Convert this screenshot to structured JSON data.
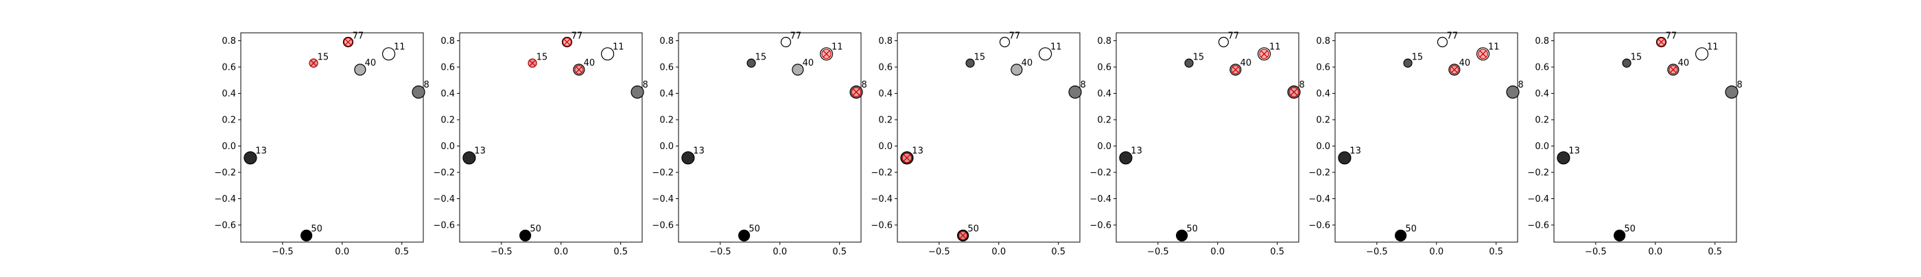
{
  "colors": {
    "highlight_fill": "#f4a6a6",
    "highlight_stroke": "#cc0000",
    "point_stroke": "#000000",
    "axis": "#000000"
  },
  "chart_data": [
    {
      "type": "scatter",
      "xlim": [
        -0.85,
        0.68
      ],
      "ylim": [
        -0.73,
        0.86
      ],
      "x_ticks": [
        -0.5,
        0.0,
        0.5
      ],
      "x_tick_labels": [
        "−0.5",
        "0.0",
        "0.5"
      ],
      "y_ticks": [
        -0.6,
        -0.4,
        -0.2,
        0.0,
        0.2,
        0.4,
        0.6,
        0.8
      ],
      "y_tick_labels": [
        "−0.6",
        "−0.4",
        "−0.2",
        "0.0",
        "0.2",
        "0.4",
        "0.6",
        "0.8"
      ],
      "grid": false,
      "points": [
        {
          "label": "77",
          "x": 0.05,
          "y": 0.79,
          "shade": "#ffffff",
          "size": 7,
          "highlighted": true
        },
        {
          "label": "11",
          "x": 0.39,
          "y": 0.7,
          "shade": "#ffffff",
          "size": 9,
          "highlighted": false
        },
        {
          "label": "15",
          "x": -0.24,
          "y": 0.63,
          "shade": "#555555",
          "size": 6,
          "highlighted": true
        },
        {
          "label": "40",
          "x": 0.15,
          "y": 0.58,
          "shade": "#b0b0b0",
          "size": 8,
          "highlighted": false
        },
        {
          "label": "8",
          "x": 0.64,
          "y": 0.41,
          "shade": "#777777",
          "size": 9,
          "highlighted": false
        },
        {
          "label": "13",
          "x": -0.77,
          "y": -0.09,
          "shade": "#2a2a2a",
          "size": 9,
          "highlighted": false
        },
        {
          "label": "50",
          "x": -0.3,
          "y": -0.68,
          "shade": "#000000",
          "size": 8,
          "highlighted": false
        }
      ]
    },
    {
      "type": "scatter",
      "xlim": [
        -0.85,
        0.68
      ],
      "ylim": [
        -0.73,
        0.86
      ],
      "x_ticks": [
        -0.5,
        0.0,
        0.5
      ],
      "x_tick_labels": [
        "−0.5",
        "0.0",
        "0.5"
      ],
      "y_ticks": [
        -0.6,
        -0.4,
        -0.2,
        0.0,
        0.2,
        0.4,
        0.6,
        0.8
      ],
      "y_tick_labels": [
        "−0.6",
        "−0.4",
        "−0.2",
        "0.0",
        "0.2",
        "0.4",
        "0.6",
        "0.8"
      ],
      "grid": false,
      "points": [
        {
          "label": "77",
          "x": 0.05,
          "y": 0.79,
          "shade": "#ffffff",
          "size": 7,
          "highlighted": true
        },
        {
          "label": "11",
          "x": 0.39,
          "y": 0.7,
          "shade": "#ffffff",
          "size": 9,
          "highlighted": false
        },
        {
          "label": "15",
          "x": -0.24,
          "y": 0.63,
          "shade": "#555555",
          "size": 6,
          "highlighted": true
        },
        {
          "label": "40",
          "x": 0.15,
          "y": 0.58,
          "shade": "#b0b0b0",
          "size": 8,
          "highlighted": true
        },
        {
          "label": "8",
          "x": 0.64,
          "y": 0.41,
          "shade": "#777777",
          "size": 9,
          "highlighted": false
        },
        {
          "label": "13",
          "x": -0.77,
          "y": -0.09,
          "shade": "#2a2a2a",
          "size": 9,
          "highlighted": false
        },
        {
          "label": "50",
          "x": -0.3,
          "y": -0.68,
          "shade": "#000000",
          "size": 8,
          "highlighted": false
        }
      ]
    },
    {
      "type": "scatter",
      "xlim": [
        -0.85,
        0.68
      ],
      "ylim": [
        -0.73,
        0.86
      ],
      "x_ticks": [
        -0.5,
        0.0,
        0.5
      ],
      "x_tick_labels": [
        "−0.5",
        "0.0",
        "0.5"
      ],
      "y_ticks": [
        -0.6,
        -0.4,
        -0.2,
        0.0,
        0.2,
        0.4,
        0.6,
        0.8
      ],
      "y_tick_labels": [
        "−0.6",
        "−0.4",
        "−0.2",
        "0.0",
        "0.2",
        "0.4",
        "0.6",
        "0.8"
      ],
      "grid": false,
      "points": [
        {
          "label": "77",
          "x": 0.05,
          "y": 0.79,
          "shade": "#ffffff",
          "size": 7,
          "highlighted": false
        },
        {
          "label": "11",
          "x": 0.39,
          "y": 0.7,
          "shade": "#ffffff",
          "size": 9,
          "highlighted": true
        },
        {
          "label": "15",
          "x": -0.24,
          "y": 0.63,
          "shade": "#555555",
          "size": 6,
          "highlighted": false
        },
        {
          "label": "40",
          "x": 0.15,
          "y": 0.58,
          "shade": "#b0b0b0",
          "size": 8,
          "highlighted": false
        },
        {
          "label": "8",
          "x": 0.64,
          "y": 0.41,
          "shade": "#777777",
          "size": 9,
          "highlighted": true
        },
        {
          "label": "13",
          "x": -0.77,
          "y": -0.09,
          "shade": "#2a2a2a",
          "size": 9,
          "highlighted": false
        },
        {
          "label": "50",
          "x": -0.3,
          "y": -0.68,
          "shade": "#000000",
          "size": 8,
          "highlighted": false
        }
      ]
    },
    {
      "type": "scatter",
      "xlim": [
        -0.85,
        0.68
      ],
      "ylim": [
        -0.73,
        0.86
      ],
      "x_ticks": [
        -0.5,
        0.0,
        0.5
      ],
      "x_tick_labels": [
        "−0.5",
        "0.0",
        "0.5"
      ],
      "y_ticks": [
        -0.6,
        -0.4,
        -0.2,
        0.0,
        0.2,
        0.4,
        0.6,
        0.8
      ],
      "y_tick_labels": [
        "−0.6",
        "−0.4",
        "−0.2",
        "0.0",
        "0.2",
        "0.4",
        "0.6",
        "0.8"
      ],
      "grid": false,
      "points": [
        {
          "label": "77",
          "x": 0.05,
          "y": 0.79,
          "shade": "#ffffff",
          "size": 7,
          "highlighted": false
        },
        {
          "label": "11",
          "x": 0.39,
          "y": 0.7,
          "shade": "#ffffff",
          "size": 9,
          "highlighted": false
        },
        {
          "label": "15",
          "x": -0.24,
          "y": 0.63,
          "shade": "#555555",
          "size": 6,
          "highlighted": false
        },
        {
          "label": "40",
          "x": 0.15,
          "y": 0.58,
          "shade": "#b0b0b0",
          "size": 8,
          "highlighted": false
        },
        {
          "label": "8",
          "x": 0.64,
          "y": 0.41,
          "shade": "#777777",
          "size": 9,
          "highlighted": false
        },
        {
          "label": "13",
          "x": -0.77,
          "y": -0.09,
          "shade": "#2a2a2a",
          "size": 9,
          "highlighted": true
        },
        {
          "label": "50",
          "x": -0.3,
          "y": -0.68,
          "shade": "#000000",
          "size": 8,
          "highlighted": true
        }
      ]
    },
    {
      "type": "scatter",
      "xlim": [
        -0.85,
        0.68
      ],
      "ylim": [
        -0.73,
        0.86
      ],
      "x_ticks": [
        -0.5,
        0.0,
        0.5
      ],
      "x_tick_labels": [
        "−0.5",
        "0.0",
        "0.5"
      ],
      "y_ticks": [
        -0.6,
        -0.4,
        -0.2,
        0.0,
        0.2,
        0.4,
        0.6,
        0.8
      ],
      "y_tick_labels": [
        "−0.6",
        "−0.4",
        "−0.2",
        "0.0",
        "0.2",
        "0.4",
        "0.6",
        "0.8"
      ],
      "grid": false,
      "points": [
        {
          "label": "77",
          "x": 0.05,
          "y": 0.79,
          "shade": "#ffffff",
          "size": 7,
          "highlighted": false
        },
        {
          "label": "11",
          "x": 0.39,
          "y": 0.7,
          "shade": "#ffffff",
          "size": 9,
          "highlighted": true
        },
        {
          "label": "15",
          "x": -0.24,
          "y": 0.63,
          "shade": "#555555",
          "size": 6,
          "highlighted": false
        },
        {
          "label": "40",
          "x": 0.15,
          "y": 0.58,
          "shade": "#b0b0b0",
          "size": 8,
          "highlighted": true
        },
        {
          "label": "8",
          "x": 0.64,
          "y": 0.41,
          "shade": "#777777",
          "size": 9,
          "highlighted": true
        },
        {
          "label": "13",
          "x": -0.77,
          "y": -0.09,
          "shade": "#2a2a2a",
          "size": 9,
          "highlighted": false
        },
        {
          "label": "50",
          "x": -0.3,
          "y": -0.68,
          "shade": "#000000",
          "size": 8,
          "highlighted": false
        }
      ]
    },
    {
      "type": "scatter",
      "xlim": [
        -0.85,
        0.68
      ],
      "ylim": [
        -0.73,
        0.86
      ],
      "x_ticks": [
        -0.5,
        0.0,
        0.5
      ],
      "x_tick_labels": [
        "−0.5",
        "0.0",
        "0.5"
      ],
      "y_ticks": [
        -0.6,
        -0.4,
        -0.2,
        0.0,
        0.2,
        0.4,
        0.6,
        0.8
      ],
      "y_tick_labels": [
        "−0.6",
        "−0.4",
        "−0.2",
        "0.0",
        "0.2",
        "0.4",
        "0.6",
        "0.8"
      ],
      "grid": false,
      "points": [
        {
          "label": "77",
          "x": 0.05,
          "y": 0.79,
          "shade": "#ffffff",
          "size": 7,
          "highlighted": false
        },
        {
          "label": "11",
          "x": 0.39,
          "y": 0.7,
          "shade": "#ffffff",
          "size": 9,
          "highlighted": true
        },
        {
          "label": "15",
          "x": -0.24,
          "y": 0.63,
          "shade": "#555555",
          "size": 6,
          "highlighted": false
        },
        {
          "label": "40",
          "x": 0.15,
          "y": 0.58,
          "shade": "#b0b0b0",
          "size": 8,
          "highlighted": true
        },
        {
          "label": "8",
          "x": 0.64,
          "y": 0.41,
          "shade": "#777777",
          "size": 9,
          "highlighted": false
        },
        {
          "label": "13",
          "x": -0.77,
          "y": -0.09,
          "shade": "#2a2a2a",
          "size": 9,
          "highlighted": false
        },
        {
          "label": "50",
          "x": -0.3,
          "y": -0.68,
          "shade": "#000000",
          "size": 8,
          "highlighted": false
        }
      ]
    },
    {
      "type": "scatter",
      "xlim": [
        -0.85,
        0.68
      ],
      "ylim": [
        -0.73,
        0.86
      ],
      "x_ticks": [
        -0.5,
        0.0,
        0.5
      ],
      "x_tick_labels": [
        "−0.5",
        "0.0",
        "0.5"
      ],
      "y_ticks": [
        -0.6,
        -0.4,
        -0.2,
        0.0,
        0.2,
        0.4,
        0.6,
        0.8
      ],
      "y_tick_labels": [
        "−0.6",
        "−0.4",
        "−0.2",
        "0.0",
        "0.2",
        "0.4",
        "0.6",
        "0.8"
      ],
      "grid": false,
      "points": [
        {
          "label": "77",
          "x": 0.05,
          "y": 0.79,
          "shade": "#ffffff",
          "size": 7,
          "highlighted": true
        },
        {
          "label": "11",
          "x": 0.39,
          "y": 0.7,
          "shade": "#ffffff",
          "size": 9,
          "highlighted": false
        },
        {
          "label": "15",
          "x": -0.24,
          "y": 0.63,
          "shade": "#555555",
          "size": 6,
          "highlighted": false
        },
        {
          "label": "40",
          "x": 0.15,
          "y": 0.58,
          "shade": "#b0b0b0",
          "size": 8,
          "highlighted": true
        },
        {
          "label": "8",
          "x": 0.64,
          "y": 0.41,
          "shade": "#777777",
          "size": 9,
          "highlighted": false
        },
        {
          "label": "13",
          "x": -0.77,
          "y": -0.09,
          "shade": "#2a2a2a",
          "size": 9,
          "highlighted": false
        },
        {
          "label": "50",
          "x": -0.3,
          "y": -0.68,
          "shade": "#000000",
          "size": 8,
          "highlighted": false
        }
      ]
    }
  ]
}
